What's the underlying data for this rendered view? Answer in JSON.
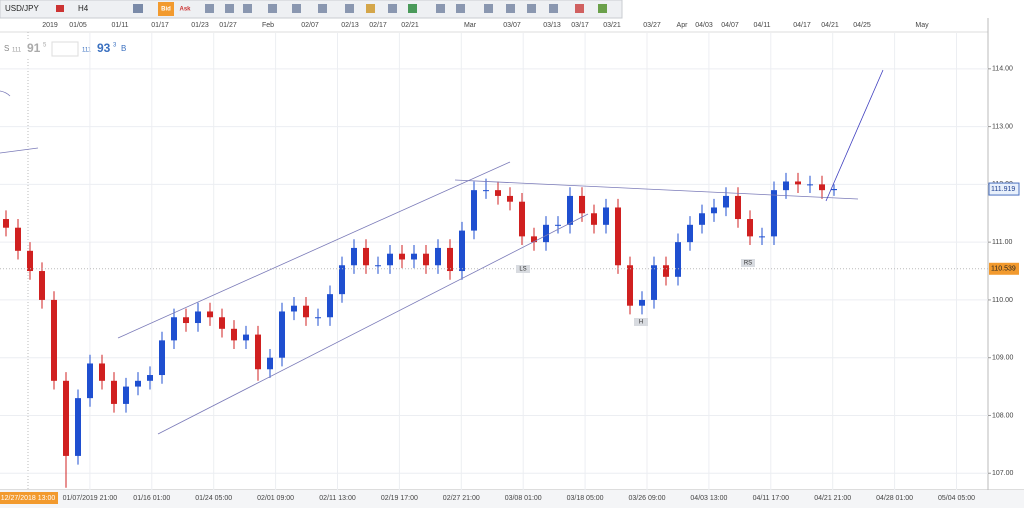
{
  "toolbar": {
    "symbol": "USD/JPY",
    "timeframe": "H4",
    "bid_button": "Bid",
    "ask_button": "Ask"
  },
  "quote": {
    "sell_label": "S",
    "sell_big": "111",
    "sell_main": "91",
    "sell_pip": "5",
    "buy_big": "111",
    "buy_main": "93",
    "buy_pip": "3",
    "buy_label": "B"
  },
  "chart_data": {
    "type": "candlestick",
    "top_dates": [
      "2019",
      "01/05",
      "01/11",
      "01/17",
      "01/23",
      "01/27",
      "Feb",
      "02/07",
      "02/13",
      "02/17",
      "02/21",
      "Mar",
      "03/07",
      "03/13",
      "03/17",
      "03/21",
      "03/27",
      "Apr",
      "04/03",
      "04/07",
      "04/11",
      "04/17",
      "04/21",
      "04/25",
      "May"
    ],
    "categories": [
      "12/27/2018 13:00",
      "01/07/2019 21:00",
      "01/16 01:00",
      "01/24 05:00",
      "02/01 09:00",
      "02/11 13:00",
      "02/19 17:00",
      "02/27 21:00",
      "03/08 01:00",
      "03/18 05:00",
      "03/26 09:00",
      "04/03 13:00",
      "04/11 17:00",
      "04/21 21:00",
      "04/28 01:00",
      "05/04 05:00"
    ],
    "open": [
      111.4,
      111.25,
      110.85,
      110.5,
      110.0,
      108.6,
      107.3,
      108.3,
      108.9,
      108.6,
      108.2,
      108.5,
      108.6,
      108.7,
      109.3,
      109.7,
      109.6,
      109.8,
      109.7,
      109.5,
      109.3,
      109.4,
      108.8,
      109.0,
      109.8,
      109.9,
      109.7,
      109.7,
      110.1,
      110.6,
      110.9,
      110.6,
      110.6,
      110.8,
      110.7,
      110.8,
      110.6,
      110.9,
      110.5,
      111.2,
      111.9,
      111.9,
      111.8,
      111.7,
      111.1,
      111.0,
      111.3,
      111.3,
      111.8,
      111.5,
      111.3,
      111.6,
      110.6,
      109.9,
      110.0,
      110.6,
      110.4,
      111.0,
      111.3,
      111.5,
      111.6,
      111.8,
      111.4,
      111.1,
      111.1,
      111.9,
      112.05,
      112.0,
      112.0,
      111.9
    ],
    "high": [
      111.55,
      111.4,
      111.0,
      110.65,
      110.15,
      108.75,
      108.45,
      109.05,
      109.05,
      108.75,
      108.65,
      108.75,
      108.85,
      109.45,
      109.85,
      109.85,
      109.95,
      109.95,
      109.85,
      109.65,
      109.55,
      109.55,
      109.15,
      109.95,
      110.05,
      110.05,
      109.85,
      110.25,
      110.75,
      111.05,
      111.05,
      110.75,
      110.95,
      110.95,
      110.95,
      110.95,
      111.05,
      111.05,
      111.35,
      112.05,
      112.1,
      112.05,
      111.95,
      111.85,
      111.25,
      111.45,
      111.45,
      111.95,
      111.95,
      111.65,
      111.75,
      111.75,
      110.75,
      110.15,
      110.75,
      110.75,
      111.15,
      111.45,
      111.65,
      111.75,
      111.95,
      111.95,
      111.55,
      111.25,
      112.05,
      112.2,
      112.2,
      112.15,
      112.15,
      112.0
    ],
    "low": [
      111.1,
      110.7,
      110.35,
      109.85,
      108.45,
      106.75,
      107.15,
      108.15,
      108.45,
      108.05,
      108.05,
      108.35,
      108.45,
      108.55,
      109.15,
      109.45,
      109.45,
      109.55,
      109.35,
      109.15,
      109.15,
      108.6,
      108.65,
      108.85,
      109.65,
      109.55,
      109.55,
      109.55,
      109.95,
      110.45,
      110.45,
      110.45,
      110.45,
      110.55,
      110.55,
      110.45,
      110.45,
      110.35,
      110.35,
      111.05,
      111.75,
      111.65,
      111.55,
      110.95,
      110.85,
      110.85,
      111.15,
      111.15,
      111.35,
      111.15,
      111.15,
      110.45,
      109.75,
      109.75,
      109.85,
      110.25,
      110.25,
      110.85,
      111.15,
      111.35,
      111.45,
      111.25,
      110.95,
      110.95,
      110.95,
      111.75,
      111.85,
      111.85,
      111.75,
      111.8
    ],
    "close": [
      111.25,
      110.85,
      110.5,
      110.0,
      108.6,
      107.3,
      108.3,
      108.9,
      108.6,
      108.2,
      108.5,
      108.6,
      108.7,
      109.3,
      109.7,
      109.6,
      109.8,
      109.7,
      109.5,
      109.3,
      109.4,
      108.8,
      109.0,
      109.8,
      109.9,
      109.7,
      109.7,
      110.1,
      110.6,
      110.9,
      110.6,
      110.6,
      110.8,
      110.7,
      110.8,
      110.6,
      110.9,
      110.5,
      111.2,
      111.9,
      111.9,
      111.8,
      111.7,
      111.1,
      111.0,
      111.3,
      111.3,
      111.8,
      111.5,
      111.3,
      111.6,
      110.6,
      109.9,
      110.0,
      110.6,
      110.4,
      111.0,
      111.3,
      111.5,
      111.6,
      111.8,
      111.4,
      111.1,
      111.1,
      111.9,
      112.05,
      112.0,
      112.0,
      111.9,
      111.92
    ],
    "up_color": "#1f4fd0",
    "down_color": "#d02020",
    "ylim": [
      106.71,
      114.62
    ],
    "yticks": [
      {
        "value": 107,
        "label": "107.00"
      },
      {
        "value": 108,
        "label": "108.00"
      },
      {
        "value": 109,
        "label": "109.00"
      },
      {
        "value": 110,
        "label": "110.00"
      },
      {
        "value": 111,
        "label": "111.00"
      },
      {
        "value": 112,
        "label": "112.00"
      },
      {
        "value": 113,
        "label": "113.00"
      },
      {
        "value": 114,
        "label": "114.00"
      }
    ],
    "current_price": 111.919,
    "marked_price": 110.539,
    "annotations": [
      "LS",
      "H",
      "RS"
    ],
    "grid": true
  }
}
